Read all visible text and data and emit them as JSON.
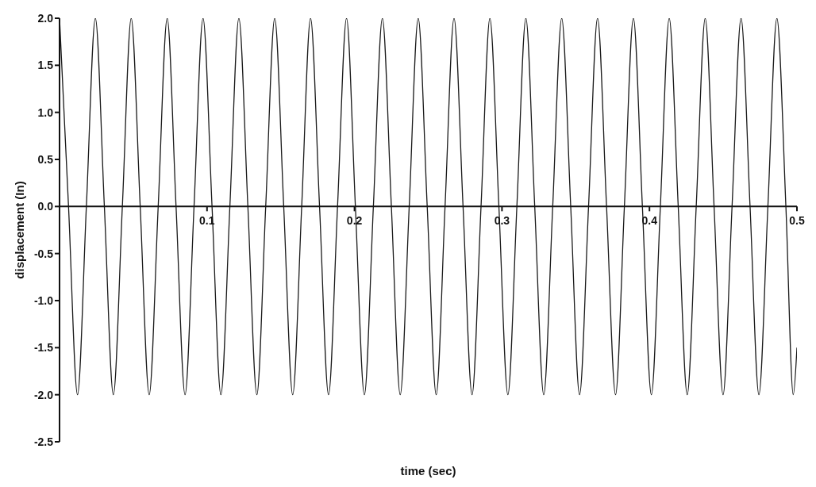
{
  "chart_data": {
    "type": "line",
    "xlabel": "time (sec)",
    "ylabel": "displacement (In)",
    "x": [
      0,
      0.0061,
      0.0122,
      0.0182,
      0.0243,
      0.0304,
      0.0365,
      0.0426,
      0.0486,
      0.0547,
      0.0608,
      0.0669,
      0.073,
      0.079,
      0.0851,
      0.0912,
      0.0973,
      0.1034,
      0.1094,
      0.1155,
      0.1216,
      0.1277,
      0.1338,
      0.1398,
      0.1459,
      0.152,
      0.1581,
      0.1642,
      0.1702,
      0.1763,
      0.1824,
      0.1885,
      0.1946,
      0.2006,
      0.2067,
      0.2128,
      0.2189,
      0.225,
      0.231,
      0.2371,
      0.2432,
      0.2493,
      0.2554,
      0.2614,
      0.2675,
      0.2736,
      0.2797,
      0.2858,
      0.2918,
      0.2979,
      0.304,
      0.3101,
      0.3162,
      0.3222,
      0.3283,
      0.3344,
      0.3405,
      0.3466,
      0.3526,
      0.3587,
      0.3648,
      0.3709,
      0.377,
      0.383,
      0.3891,
      0.3952,
      0.4013,
      0.4074,
      0.4134,
      0.4195,
      0.4256,
      0.4317,
      0.4378,
      0.4438,
      0.4499,
      0.456,
      0.4621,
      0.4682,
      0.4742,
      0.4803,
      0.4864,
      0.4925,
      0.4975,
      0.5
    ],
    "series": [
      {
        "color": "#1a1a1a",
        "values": [
          2,
          0,
          -2,
          0,
          2,
          0,
          -2,
          0,
          2,
          0,
          -2,
          0,
          2,
          0,
          -2,
          0,
          2,
          0,
          -2,
          0,
          2,
          0,
          -2,
          0,
          2,
          0,
          -2,
          0,
          2,
          0,
          -2,
          0,
          2,
          0,
          -2,
          0,
          2,
          0,
          -2,
          0,
          2,
          0,
          -2,
          0,
          2,
          0,
          -2,
          0,
          2,
          0,
          -2,
          0,
          2,
          0,
          -2,
          0,
          2,
          0,
          -2,
          0,
          2,
          0,
          -2,
          0,
          2,
          0,
          -2,
          0,
          2,
          0,
          -2,
          0,
          2,
          0,
          -2,
          0,
          2,
          0,
          -2,
          0,
          2,
          0,
          -2,
          -1.5
        ]
      }
    ],
    "xlim": [
      0,
      0.5
    ],
    "xticks": [
      0.1,
      0.2,
      0.3,
      0.4,
      0.5
    ],
    "ylim": [
      -2.5,
      2.0
    ],
    "yticks": [
      -2.5,
      {
        "value": -2,
        "label": "-2.0"
      },
      -1.5,
      {
        "value": -1,
        "label": "-1.0"
      },
      -0.5,
      {
        "value": 0,
        "label": "0.0"
      },
      0.5,
      {
        "value": 1,
        "label": "1.0"
      },
      1.5,
      {
        "value": 2,
        "label": "2.0"
      }
    ],
    "grid": false,
    "legend": false,
    "marker": "none",
    "line_style": "solid"
  }
}
